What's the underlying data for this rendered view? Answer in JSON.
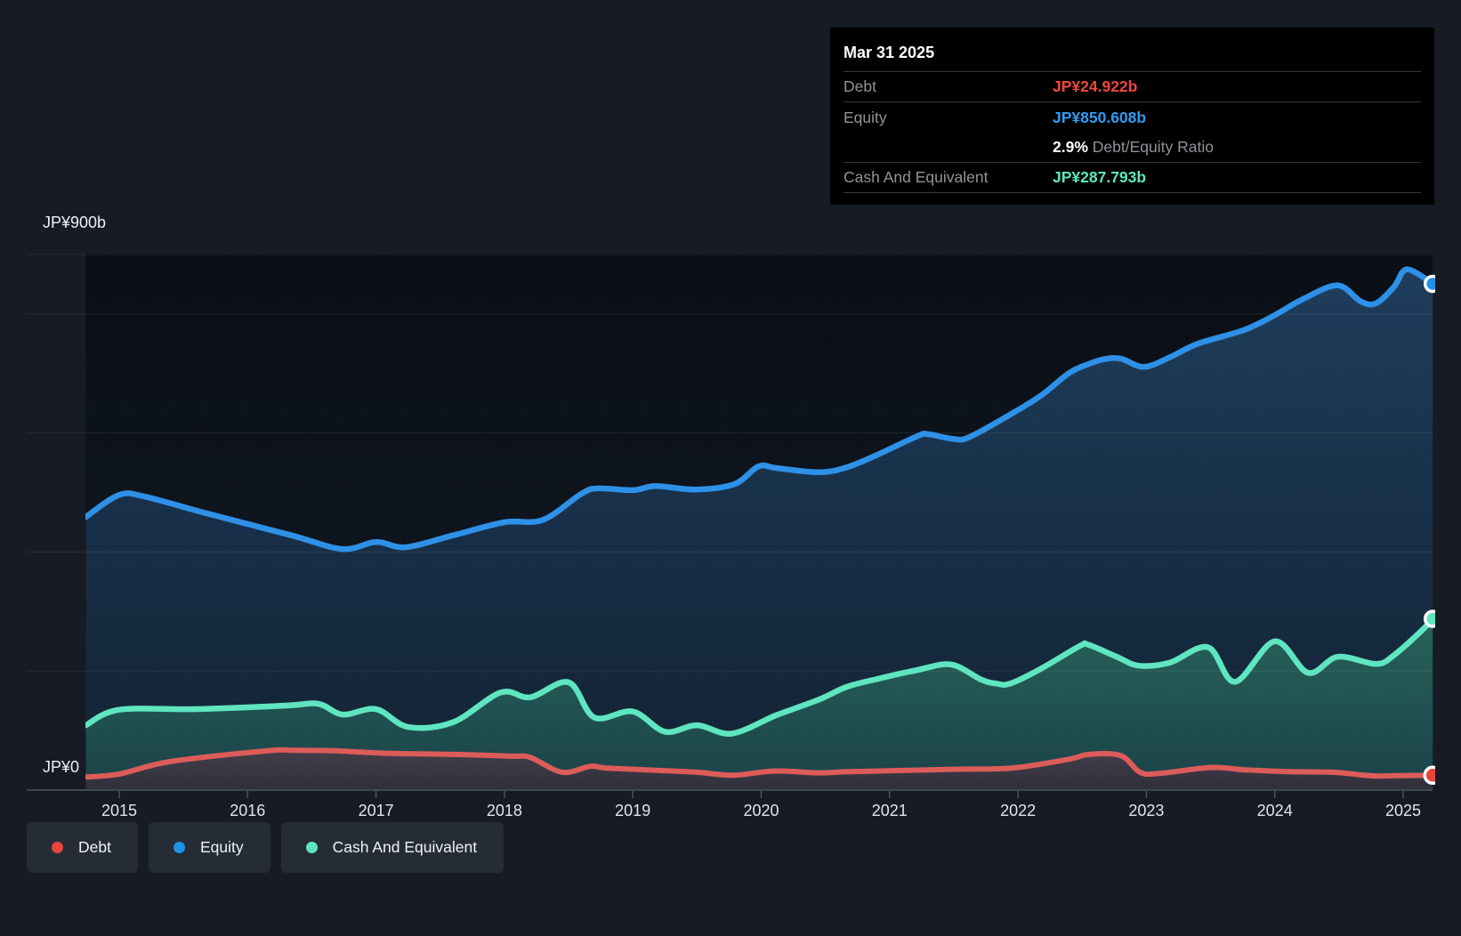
{
  "y_axis": {
    "top_label": "JP¥900b",
    "bottom_label": "JP¥0"
  },
  "x_axis": {
    "years": [
      "2015",
      "2016",
      "2017",
      "2018",
      "2019",
      "2020",
      "2021",
      "2022",
      "2023",
      "2024",
      "2025"
    ]
  },
  "tooltip": {
    "date": "Mar 31 2025",
    "debt_label": "Debt",
    "debt_value": "JP¥24.922b",
    "equity_label": "Equity",
    "equity_value": "JP¥850.608b",
    "ratio_value": "2.9%",
    "ratio_label": "Debt/Equity Ratio",
    "cash_label": "Cash And Equivalent",
    "cash_value": "JP¥287.793b"
  },
  "legend": [
    {
      "key": "debt",
      "label": "Debt",
      "color": "#e8453c"
    },
    {
      "key": "equity",
      "label": "Equity",
      "color": "#2090e8"
    },
    {
      "key": "cash",
      "label": "Cash And Equivalent",
      "color": "#5ee5c0"
    }
  ],
  "palette": {
    "debt_line": "#dc5c5a",
    "equity_line": "#2e90e6",
    "cash_line": "#5fe5c0",
    "debt_marker": "#e8453c",
    "background": "#161b24",
    "tooltip_bg": "#000000",
    "gridline": "rgba(255,255,255,0.08)"
  },
  "chart_data": {
    "type": "area",
    "title": "",
    "xlabel": "",
    "ylabel": "JP¥ billions",
    "x_range": [
      2014.74,
      2025.23
    ],
    "ylim": [
      0,
      900
    ],
    "y_gridline_values": [
      900,
      800,
      600,
      400,
      200
    ],
    "x_tick_years": [
      2015,
      2016,
      2017,
      2018,
      2019,
      2020,
      2021,
      2022,
      2023,
      2024,
      2025
    ],
    "grid": true,
    "legend_position": "bottom-left",
    "series": [
      {
        "name": "Equity",
        "color": "#2e90e6",
        "end_value": 850.608,
        "end_label": "JP¥850.608b",
        "points": [
          [
            2014.74,
            459
          ],
          [
            2015.0,
            496
          ],
          [
            2015.2,
            493
          ],
          [
            2015.63,
            468
          ],
          [
            2016.34,
            428
          ],
          [
            2016.74,
            405
          ],
          [
            2017.0,
            417
          ],
          [
            2017.23,
            408
          ],
          [
            2017.6,
            428
          ],
          [
            2018.0,
            450
          ],
          [
            2018.3,
            454
          ],
          [
            2018.6,
            498
          ],
          [
            2018.73,
            507
          ],
          [
            2019.0,
            504
          ],
          [
            2019.18,
            511
          ],
          [
            2019.48,
            505
          ],
          [
            2019.79,
            514
          ],
          [
            2019.98,
            544
          ],
          [
            2020.12,
            541
          ],
          [
            2020.45,
            534
          ],
          [
            2020.66,
            542
          ],
          [
            2020.89,
            562
          ],
          [
            2021.22,
            595
          ],
          [
            2021.3,
            598
          ],
          [
            2021.5,
            590
          ],
          [
            2021.62,
            593
          ],
          [
            2021.94,
            631
          ],
          [
            2022.18,
            663
          ],
          [
            2022.4,
            701
          ],
          [
            2022.55,
            716
          ],
          [
            2022.67,
            724
          ],
          [
            2022.8,
            725
          ],
          [
            2022.98,
            711
          ],
          [
            2023.18,
            727
          ],
          [
            2023.4,
            750
          ],
          [
            2023.76,
            773
          ],
          [
            2024.0,
            798
          ],
          [
            2024.22,
            825
          ],
          [
            2024.49,
            848
          ],
          [
            2024.67,
            821
          ],
          [
            2024.79,
            818
          ],
          [
            2024.93,
            846
          ],
          [
            2025.03,
            875
          ],
          [
            2025.23,
            850.608
          ]
        ]
      },
      {
        "name": "Cash And Equivalent",
        "color": "#5fe5c0",
        "end_value": 287.793,
        "end_label": "JP¥287.793b",
        "points": [
          [
            2014.74,
            109
          ],
          [
            2015.0,
            135
          ],
          [
            2015.6,
            136
          ],
          [
            2016.3,
            142
          ],
          [
            2016.55,
            145
          ],
          [
            2016.74,
            127
          ],
          [
            2017.0,
            136
          ],
          [
            2017.25,
            106
          ],
          [
            2017.6,
            114
          ],
          [
            2017.97,
            164
          ],
          [
            2018.2,
            156
          ],
          [
            2018.5,
            181
          ],
          [
            2018.7,
            122
          ],
          [
            2019.0,
            132
          ],
          [
            2019.25,
            98
          ],
          [
            2019.5,
            109
          ],
          [
            2019.77,
            95
          ],
          [
            2020.12,
            126
          ],
          [
            2020.45,
            152
          ],
          [
            2020.66,
            173
          ],
          [
            2020.89,
            186
          ],
          [
            2021.22,
            202
          ],
          [
            2021.48,
            211
          ],
          [
            2021.71,
            186
          ],
          [
            2021.83,
            179
          ],
          [
            2021.94,
            179
          ],
          [
            2022.18,
            204
          ],
          [
            2022.48,
            242
          ],
          [
            2022.55,
            244
          ],
          [
            2022.77,
            224
          ],
          [
            2022.94,
            209
          ],
          [
            2023.18,
            214
          ],
          [
            2023.48,
            240
          ],
          [
            2023.69,
            182
          ],
          [
            2024.0,
            250
          ],
          [
            2024.26,
            197
          ],
          [
            2024.49,
            224
          ],
          [
            2024.79,
            212
          ],
          [
            2024.93,
            227
          ],
          [
            2025.14,
            267
          ],
          [
            2025.23,
            287.793
          ]
        ]
      },
      {
        "name": "Debt",
        "color": "#dc5c5a",
        "end_value": 24.922,
        "end_label": "JP¥24.922b",
        "points": [
          [
            2014.74,
            22
          ],
          [
            2015.0,
            27
          ],
          [
            2015.4,
            48
          ],
          [
            2016.15,
            66
          ],
          [
            2016.35,
            67
          ],
          [
            2016.7,
            66
          ],
          [
            2017.05,
            62
          ],
          [
            2017.6,
            60
          ],
          [
            2018.05,
            57
          ],
          [
            2018.2,
            55
          ],
          [
            2018.45,
            30
          ],
          [
            2018.67,
            40
          ],
          [
            2018.8,
            37
          ],
          [
            2019.2,
            33
          ],
          [
            2019.5,
            30
          ],
          [
            2019.78,
            25
          ],
          [
            2020.1,
            32
          ],
          [
            2020.45,
            29
          ],
          [
            2020.7,
            31
          ],
          [
            2021.5,
            35
          ],
          [
            2021.95,
            37
          ],
          [
            2022.4,
            52
          ],
          [
            2022.55,
            60
          ],
          [
            2022.8,
            58
          ],
          [
            2022.95,
            30
          ],
          [
            2023.1,
            28
          ],
          [
            2023.5,
            38
          ],
          [
            2023.77,
            34
          ],
          [
            2024.1,
            31
          ],
          [
            2024.45,
            30
          ],
          [
            2024.75,
            24
          ],
          [
            2024.9,
            24
          ],
          [
            2025.23,
            24.922
          ]
        ]
      }
    ]
  }
}
